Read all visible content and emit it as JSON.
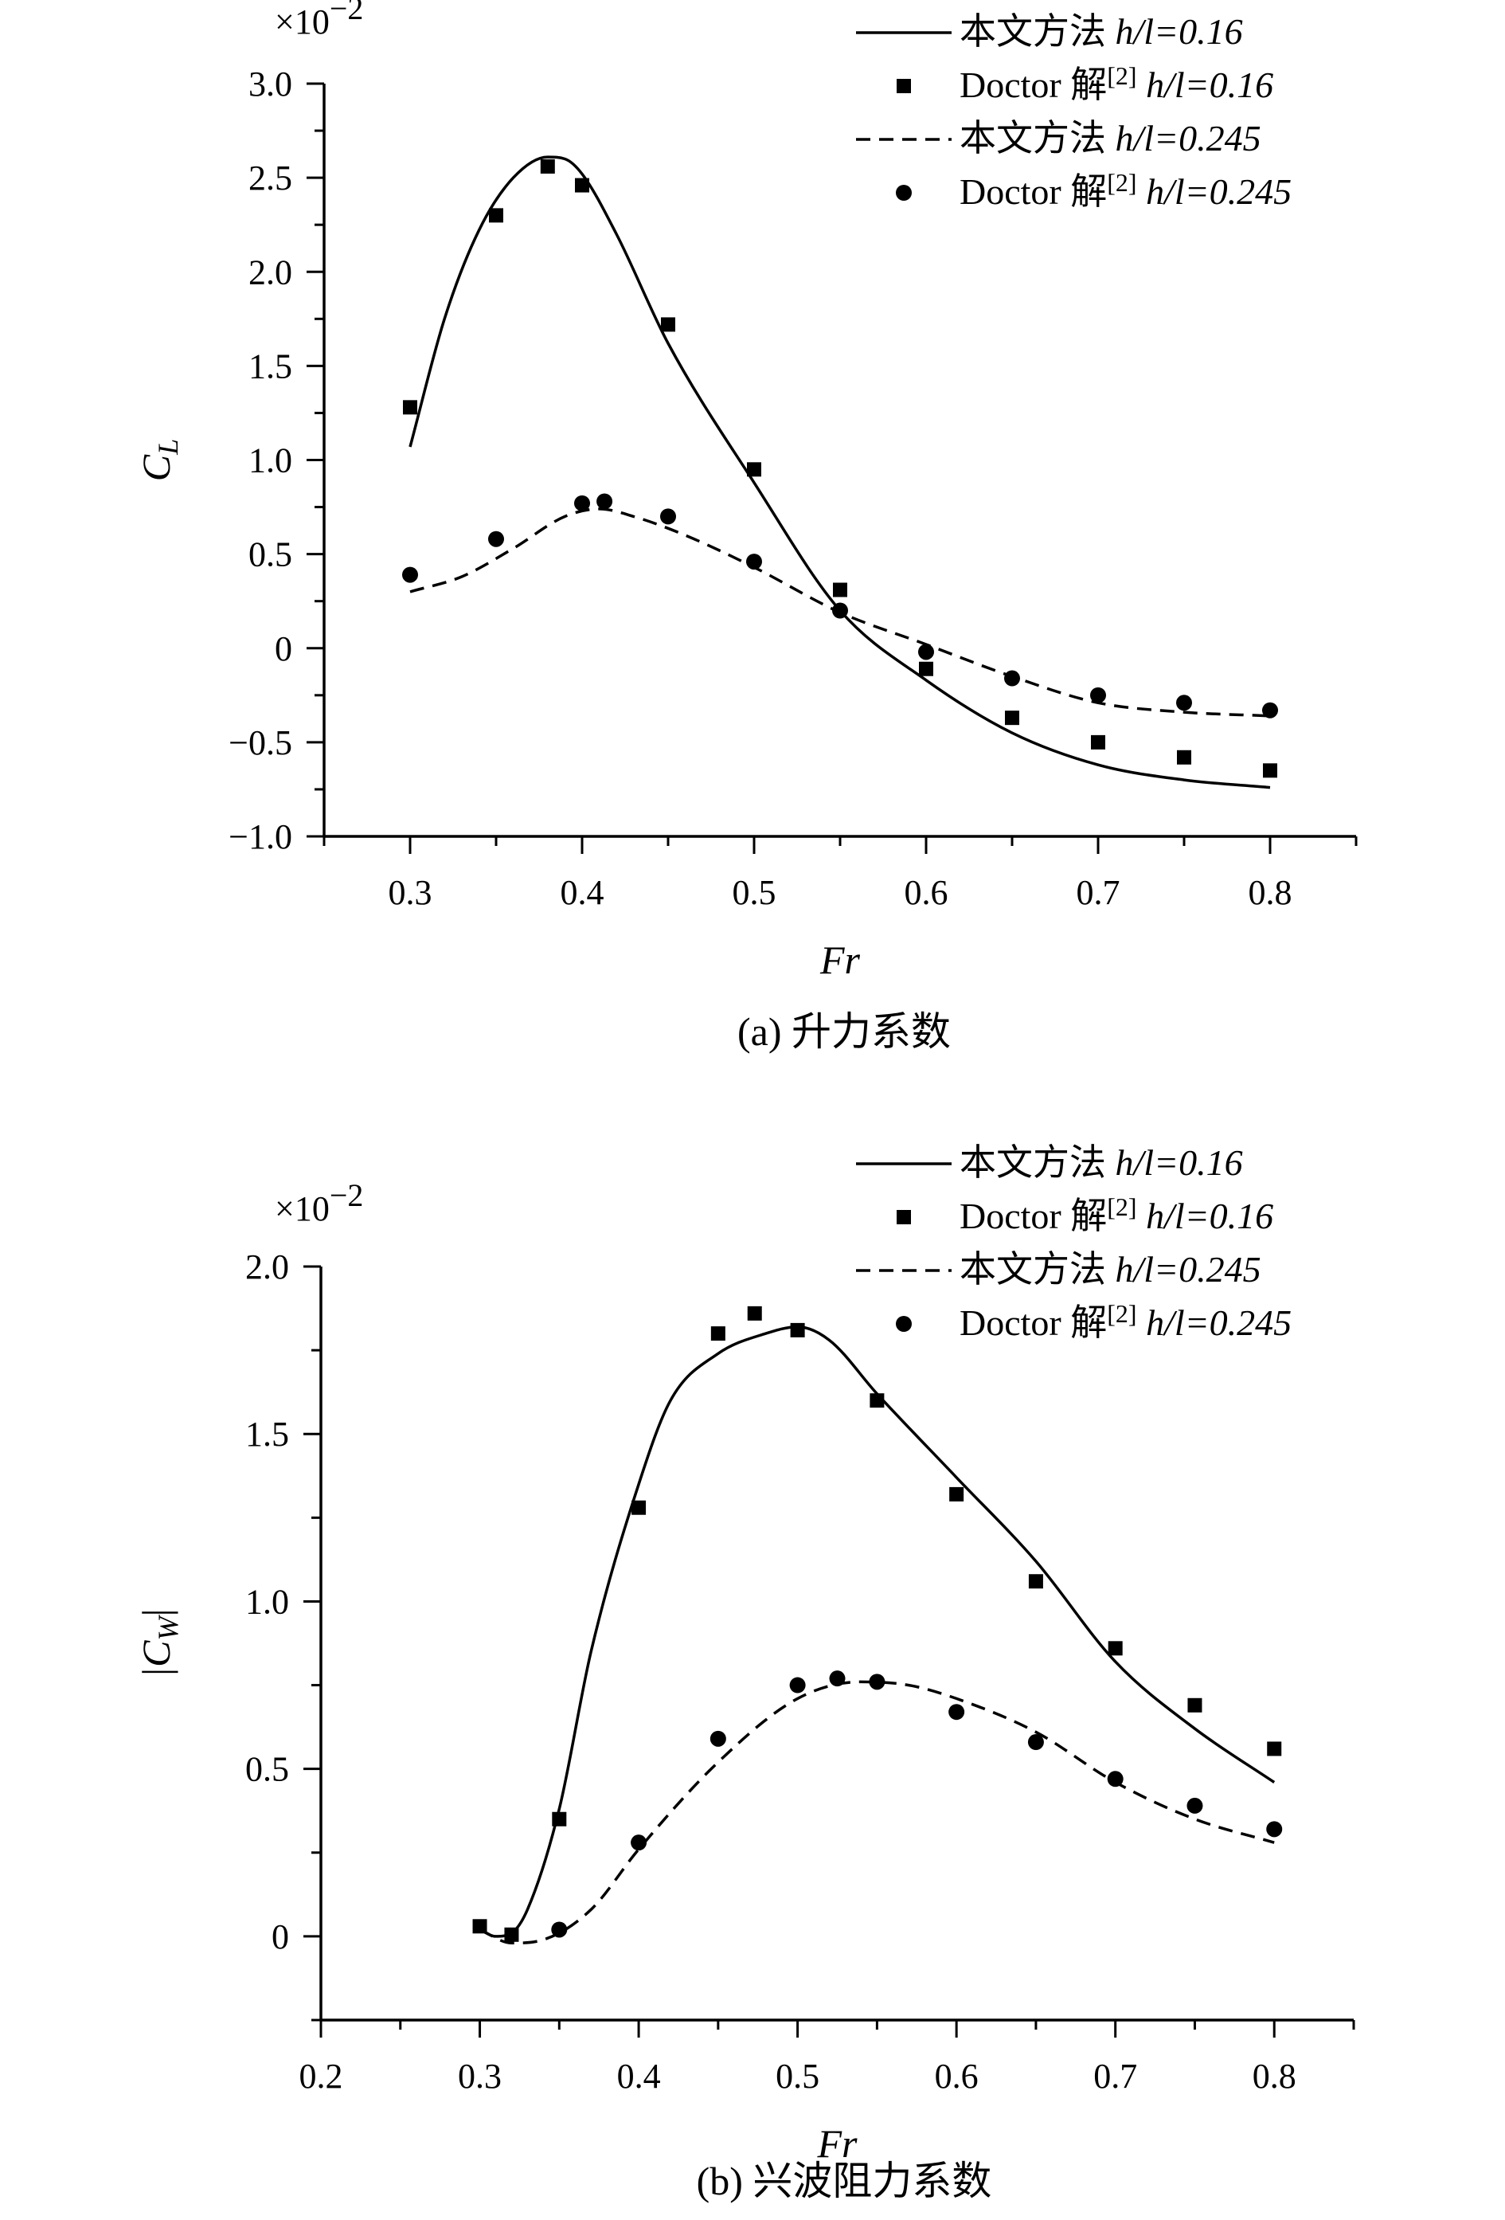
{
  "chart_data": [
    {
      "type": "line",
      "title": "",
      "caption": "(a) 升力系数",
      "xlabel": "Fr",
      "ylabel_base": "C",
      "ylabel_sub": "L",
      "multiplier": "×10",
      "multiplier_exp": "−2",
      "xlim": [
        0.25,
        0.85
      ],
      "ylim": [
        -1.0,
        3.0
      ],
      "xticks": [
        "0.3",
        "0.4",
        "0.5",
        "0.6",
        "0.7",
        "0.8"
      ],
      "xtick_values": [
        0.3,
        0.4,
        0.5,
        0.6,
        0.7,
        0.8
      ],
      "yticks": [
        "−1.0",
        "−0.5",
        "0",
        "0.5",
        "1.0",
        "1.5",
        "2.0",
        "2.5",
        "3.0"
      ],
      "ytick_values": [
        -1.0,
        -0.5,
        0,
        0.5,
        1.0,
        1.5,
        2.0,
        2.5,
        3.0
      ],
      "legend_position": "top-right",
      "legend": [
        {
          "method": "本文方法",
          "ref": "",
          "hl": "h/l=0.16",
          "marker": "solid-line"
        },
        {
          "method": "Doctor 解",
          "ref": "[2]",
          "hl": "h/l=0.16",
          "marker": "square"
        },
        {
          "method": "本文方法",
          "ref": "",
          "hl": "h/l=0.245",
          "marker": "dashed-line"
        },
        {
          "method": "Doctor 解",
          "ref": "[2]",
          "hl": "h/l=0.245",
          "marker": "circle"
        }
      ],
      "series": [
        {
          "name": "本文方法 h/l=0.16",
          "style": "solid",
          "x": [
            0.3,
            0.32,
            0.34,
            0.36,
            0.38,
            0.39,
            0.4,
            0.42,
            0.45,
            0.5,
            0.55,
            0.6,
            0.65,
            0.7,
            0.75,
            0.8
          ],
          "y": [
            1.07,
            1.75,
            2.22,
            2.5,
            2.61,
            2.6,
            2.52,
            2.2,
            1.62,
            0.88,
            0.2,
            -0.17,
            -0.45,
            -0.62,
            -0.7,
            -0.74
          ]
        },
        {
          "name": "Doctor 解[2] h/l=0.16",
          "style": "square",
          "x": [
            0.3,
            0.35,
            0.38,
            0.4,
            0.45,
            0.5,
            0.55,
            0.6,
            0.65,
            0.7,
            0.75,
            0.8
          ],
          "y": [
            1.28,
            2.3,
            2.56,
            2.46,
            1.72,
            0.95,
            0.31,
            -0.11,
            -0.37,
            -0.5,
            -0.58,
            -0.65
          ]
        },
        {
          "name": "本文方法 h/l=0.245",
          "style": "dashed",
          "x": [
            0.3,
            0.33,
            0.36,
            0.39,
            0.41,
            0.43,
            0.46,
            0.5,
            0.55,
            0.6,
            0.65,
            0.7,
            0.75,
            0.8
          ],
          "y": [
            0.3,
            0.38,
            0.53,
            0.7,
            0.74,
            0.7,
            0.6,
            0.43,
            0.19,
            0.02,
            -0.15,
            -0.29,
            -0.34,
            -0.36
          ]
        },
        {
          "name": "Doctor 解[2] h/l=0.245",
          "style": "circle",
          "x": [
            0.3,
            0.35,
            0.4,
            0.413,
            0.45,
            0.5,
            0.55,
            0.6,
            0.65,
            0.7,
            0.75,
            0.8
          ],
          "y": [
            0.39,
            0.58,
            0.77,
            0.78,
            0.7,
            0.46,
            0.2,
            -0.02,
            -0.16,
            -0.25,
            -0.29,
            -0.33
          ]
        }
      ]
    },
    {
      "type": "line",
      "title": "",
      "caption": "(b) 兴波阻力系数",
      "xlabel": "Fr",
      "ylabel_base": "|C",
      "ylabel_sub": "W",
      "ylabel_end": "|",
      "multiplier": "×10",
      "multiplier_exp": "−2",
      "xlim": [
        0.2,
        0.85
      ],
      "ylim": [
        -0.25,
        2.0
      ],
      "xticks": [
        "0.2",
        "0.3",
        "0.4",
        "0.5",
        "0.6",
        "0.7",
        "0.8"
      ],
      "xtick_values": [
        0.2,
        0.3,
        0.4,
        0.5,
        0.6,
        0.7,
        0.8
      ],
      "yticks": [
        "0",
        "0.5",
        "1.0",
        "1.5",
        "2.0"
      ],
      "ytick_values": [
        0,
        0.5,
        1.0,
        1.5,
        2.0
      ],
      "legend_position": "top-right",
      "legend": [
        {
          "method": "本文方法",
          "ref": "",
          "hl": "h/l=0.16",
          "marker": "solid-line"
        },
        {
          "method": "Doctor 解",
          "ref": "[2]",
          "hl": "h/l=0.16",
          "marker": "square"
        },
        {
          "method": "本文方法",
          "ref": "",
          "hl": "h/l=0.245",
          "marker": "dashed-line"
        },
        {
          "method": "Doctor 解",
          "ref": "[2]",
          "hl": "h/l=0.245",
          "marker": "circle"
        }
      ],
      "series": [
        {
          "name": "本文方法 h/l=0.16",
          "style": "solid",
          "x": [
            0.3,
            0.31,
            0.32,
            0.33,
            0.35,
            0.37,
            0.4,
            0.42,
            0.45,
            0.48,
            0.5,
            0.52,
            0.55,
            0.6,
            0.65,
            0.7,
            0.75,
            0.8
          ],
          "y": [
            0.02,
            0.0,
            0.01,
            0.08,
            0.38,
            0.85,
            1.35,
            1.6,
            1.74,
            1.8,
            1.82,
            1.78,
            1.62,
            1.37,
            1.12,
            0.82,
            0.62,
            0.46
          ]
        },
        {
          "name": "Doctor 解[2] h/l=0.16",
          "style": "square",
          "x": [
            0.3,
            0.32,
            0.35,
            0.4,
            0.45,
            0.473,
            0.5,
            0.55,
            0.6,
            0.65,
            0.7,
            0.75,
            0.8
          ],
          "y": [
            0.03,
            0.005,
            0.35,
            1.28,
            1.8,
            1.86,
            1.81,
            1.6,
            1.32,
            1.06,
            0.86,
            0.69,
            0.56
          ]
        },
        {
          "name": "本文方法 h/l=0.245",
          "style": "dashed",
          "x": [
            0.3,
            0.32,
            0.34,
            0.37,
            0.4,
            0.45,
            0.5,
            0.54,
            0.57,
            0.6,
            0.65,
            0.7,
            0.75,
            0.8
          ],
          "y": [
            0.02,
            -0.02,
            -0.01,
            0.08,
            0.26,
            0.52,
            0.71,
            0.76,
            0.75,
            0.71,
            0.61,
            0.46,
            0.35,
            0.28
          ]
        },
        {
          "name": "Doctor 解[2] h/l=0.245",
          "style": "circle",
          "x": [
            0.35,
            0.4,
            0.45,
            0.5,
            0.525,
            0.55,
            0.6,
            0.65,
            0.7,
            0.75,
            0.8
          ],
          "y": [
            0.02,
            0.28,
            0.59,
            0.75,
            0.77,
            0.76,
            0.67,
            0.58,
            0.47,
            0.39,
            0.32
          ]
        }
      ]
    }
  ]
}
